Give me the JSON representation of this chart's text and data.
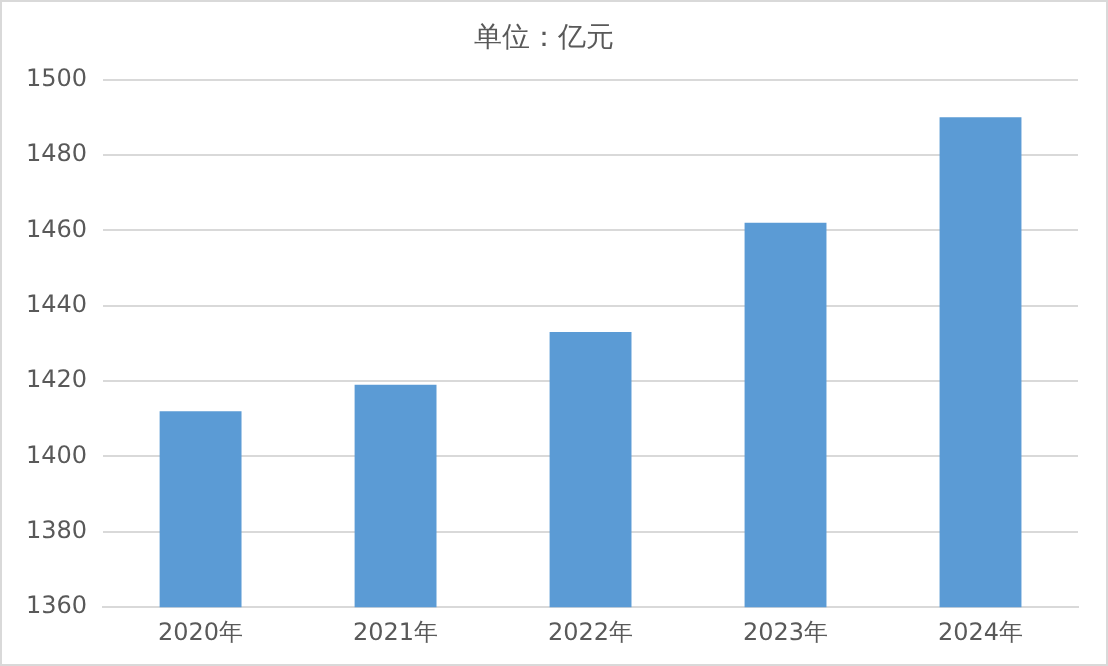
{
  "chart_data": {
    "type": "bar",
    "title": "单位：亿元",
    "categories": [
      "2020年",
      "2021年",
      "2022年",
      "2023年",
      "2024年"
    ],
    "values": [
      1412,
      1419,
      1433,
      1462,
      1490
    ],
    "color": "#5b9bd5",
    "ylim": [
      1360,
      1500
    ],
    "yticks": [
      1360,
      1380,
      1400,
      1420,
      1440,
      1460,
      1480,
      1500
    ],
    "grid": "y",
    "legend": false
  }
}
